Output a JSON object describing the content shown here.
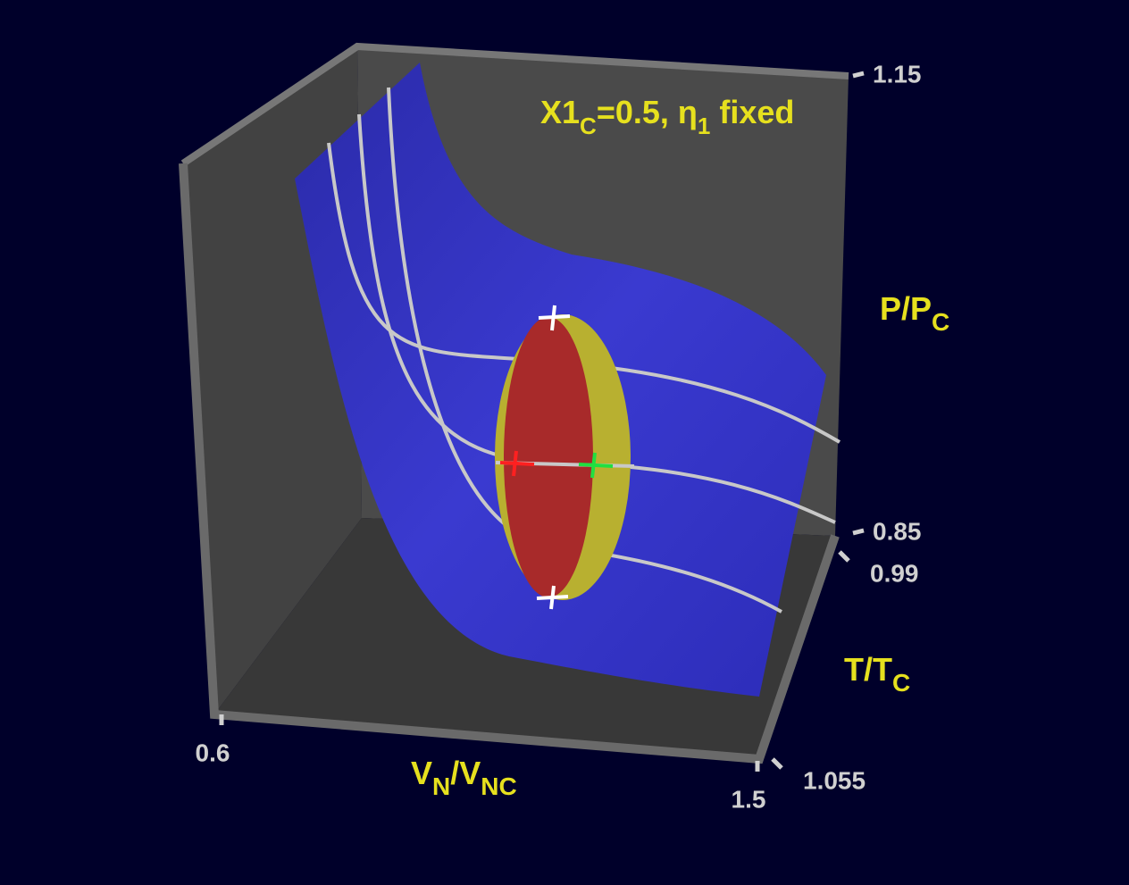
{
  "chart_data": {
    "type": "surface3d",
    "title": [
      "X1",
      "C",
      "=0.5,  η",
      "1",
      "  fixed"
    ],
    "x_label": [
      "V",
      "N",
      "/V",
      "NC"
    ],
    "y_label": [
      "T/T",
      "C"
    ],
    "z_label": [
      "P/P",
      "C"
    ],
    "xlim": [
      0.6,
      1.5
    ],
    "xticks": [
      0.6,
      1.5
    ],
    "ylim": [
      0.99,
      1.055
    ],
    "yticks": [
      0.99,
      1.055
    ],
    "zlim": [
      0.85,
      1.15
    ],
    "zticks": [
      0.85,
      1.15
    ]
  }
}
